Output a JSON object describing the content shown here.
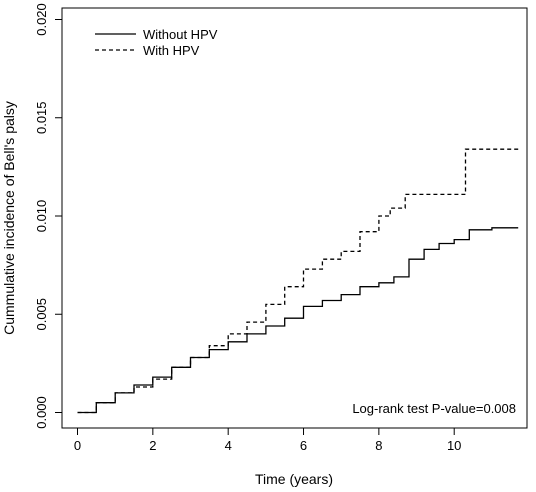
{
  "chart_data": {
    "type": "line",
    "title": "",
    "xlabel": "Time (years)",
    "ylabel": "Cummulative incidence of Bell's palsy",
    "xlim": [
      0,
      12
    ],
    "ylim": [
      0,
      0.02
    ],
    "x_ticks": [
      0,
      2,
      4,
      6,
      8,
      10
    ],
    "x_tick_labels": [
      "0",
      "2",
      "4",
      "6",
      "8",
      "10"
    ],
    "y_ticks": [
      0.0,
      0.005,
      0.01,
      0.015,
      0.02
    ],
    "y_tick_labels": [
      "0.000",
      "0.005",
      "0.010",
      "0.015",
      "0.020"
    ],
    "grid": false,
    "legend_position": "top-left",
    "annotation": "Log-rank test P-value=0.008",
    "series": [
      {
        "name": "Without HPV",
        "line_style": "solid",
        "color": "#000000",
        "points": [
          [
            0.0,
            0.0
          ],
          [
            0.5,
            0.0005
          ],
          [
            1.0,
            0.001
          ],
          [
            1.5,
            0.0014
          ],
          [
            2.0,
            0.0018
          ],
          [
            2.5,
            0.0023
          ],
          [
            3.0,
            0.0028
          ],
          [
            3.5,
            0.0032
          ],
          [
            4.0,
            0.0036
          ],
          [
            4.5,
            0.004
          ],
          [
            5.0,
            0.0044
          ],
          [
            5.5,
            0.0048
          ],
          [
            6.0,
            0.0054
          ],
          [
            6.5,
            0.0057
          ],
          [
            7.0,
            0.006
          ],
          [
            7.5,
            0.0064
          ],
          [
            8.0,
            0.0066
          ],
          [
            8.4,
            0.0069
          ],
          [
            8.8,
            0.0078
          ],
          [
            9.2,
            0.0083
          ],
          [
            9.6,
            0.0086
          ],
          [
            10.0,
            0.0088
          ],
          [
            10.4,
            0.0093
          ],
          [
            11.0,
            0.0094
          ],
          [
            11.7,
            0.0094
          ]
        ]
      },
      {
        "name": "With HPV",
        "line_style": "dashed",
        "color": "#000000",
        "points": [
          [
            0.0,
            0.0
          ],
          [
            0.5,
            0.0005
          ],
          [
            1.0,
            0.001
          ],
          [
            1.5,
            0.0013
          ],
          [
            2.0,
            0.0017
          ],
          [
            2.5,
            0.0023
          ],
          [
            3.0,
            0.0028
          ],
          [
            3.5,
            0.0034
          ],
          [
            4.0,
            0.004
          ],
          [
            4.5,
            0.0046
          ],
          [
            5.0,
            0.0055
          ],
          [
            5.5,
            0.0064
          ],
          [
            6.0,
            0.0073
          ],
          [
            6.5,
            0.0078
          ],
          [
            7.0,
            0.0082
          ],
          [
            7.5,
            0.0092
          ],
          [
            8.0,
            0.01
          ],
          [
            8.3,
            0.0104
          ],
          [
            8.7,
            0.0111
          ],
          [
            9.5,
            0.0111
          ],
          [
            10.3,
            0.0111
          ],
          [
            10.3,
            0.0134
          ],
          [
            11.7,
            0.0134
          ]
        ]
      }
    ]
  }
}
